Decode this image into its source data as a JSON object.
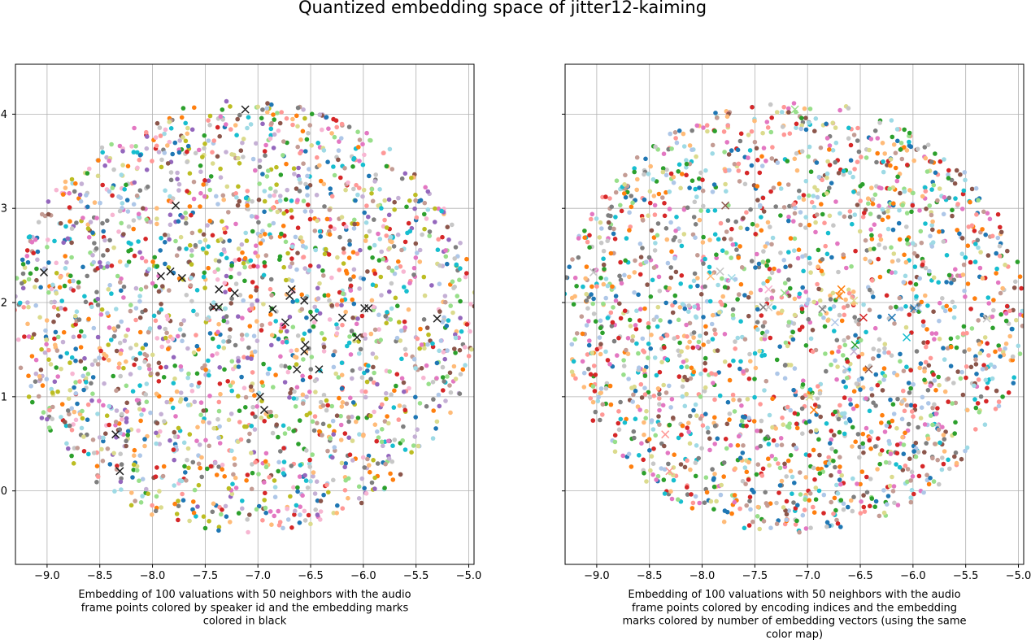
{
  "title": "Quantized embedding space of jitter12-kaiming",
  "chart_data": [
    {
      "type": "scatter",
      "caption_lines": [
        "Embedding of 100 valuations with 50 neighbors with the audio",
        "frame points colored by speaker id and the embedding marks",
        "colored in black"
      ],
      "xlim": [
        -9.3,
        -4.95
      ],
      "ylim": [
        -0.78,
        4.53
      ],
      "xticks": [
        -9.0,
        -8.5,
        -8.0,
        -7.5,
        -7.0,
        -6.5,
        -6.0,
        -5.5,
        -5.0
      ],
      "xtick_labels": [
        "−9.0",
        "−8.5",
        "−8.0",
        "−7.5",
        "−7.0",
        "−6.5",
        "−6.0",
        "−5.5",
        "−5.0"
      ],
      "yticks": [
        0,
        1,
        2,
        3,
        4
      ],
      "ytick_labels": [
        "0",
        "1",
        "2",
        "3",
        "4"
      ],
      "grid": true,
      "point_series": {
        "name": "audio frame points (colored by speaker id)",
        "count": 2200,
        "distribution": "roughly uniform disc",
        "center": [
          -7.13,
          1.85
        ],
        "radius_x": 2.2,
        "radius_y": 2.3,
        "palette": [
          "#1f77b4",
          "#2ca02c",
          "#d62728",
          "#9467bd",
          "#8c564b",
          "#e377c2",
          "#bcbd22",
          "#17becf",
          "#aec7e8",
          "#ffbb78",
          "#98df8a",
          "#ff9896",
          "#c5b0d5",
          "#c49c94",
          "#f7b6d2",
          "#c7c7c7",
          "#dbdb8d",
          "#9edae5",
          "#ff7f0e",
          "#7f7f7f"
        ]
      },
      "marks": {
        "name": "embedding marks",
        "color": "#222222",
        "points": [
          [
            -7.12,
            4.05
          ],
          [
            -7.78,
            3.03
          ],
          [
            -9.03,
            2.32
          ],
          [
            -7.92,
            2.28
          ],
          [
            -7.83,
            2.33
          ],
          [
            -7.72,
            2.26
          ],
          [
            -7.37,
            2.14
          ],
          [
            -7.22,
            2.1
          ],
          [
            -7.42,
            1.95
          ],
          [
            -7.37,
            1.95
          ],
          [
            -6.68,
            2.14
          ],
          [
            -6.7,
            2.07
          ],
          [
            -6.56,
            2.02
          ],
          [
            -6.86,
            1.93
          ],
          [
            -6.74,
            1.79
          ],
          [
            -6.47,
            1.84
          ],
          [
            -6.2,
            1.84
          ],
          [
            -5.99,
            1.94
          ],
          [
            -5.95,
            1.94
          ],
          [
            -6.06,
            1.63
          ],
          [
            -6.55,
            1.55
          ],
          [
            -6.56,
            1.48
          ],
          [
            -6.42,
            1.29
          ],
          [
            -6.63,
            1.29
          ],
          [
            -6.98,
            1.0
          ],
          [
            -6.94,
            0.86
          ],
          [
            -8.35,
            0.6
          ],
          [
            -8.31,
            0.21
          ],
          [
            -5.3,
            1.83
          ]
        ]
      }
    },
    {
      "type": "scatter",
      "caption_lines": [
        "Embedding of 100 valuations with 50 neighbors with the audio",
        "frame points colored by encoding indices and the embedding",
        "marks colored by number of embedding vectors (using the same",
        "color map)"
      ],
      "xlim": [
        -9.3,
        -4.95
      ],
      "ylim": [
        -0.78,
        4.53
      ],
      "xticks": [
        -9.0,
        -8.5,
        -8.0,
        -7.5,
        -7.0,
        -6.5,
        -6.0,
        -5.5,
        -5.0
      ],
      "xtick_labels": [
        "−9.0",
        "−8.5",
        "−8.0",
        "−7.5",
        "−7.0",
        "−6.5",
        "−6.0",
        "−5.5",
        "−5.0"
      ],
      "yticks": [
        0,
        1,
        2,
        3,
        4
      ],
      "grid": true,
      "point_series": {
        "name": "audio frame points (colored by encoding indices)",
        "count": 2200,
        "distribution": "roughly uniform disc",
        "center": [
          -7.13,
          1.85
        ],
        "radius_x": 2.2,
        "radius_y": 2.3,
        "palette": [
          "#c7c7c7",
          "#ff9896",
          "#ff7f0e",
          "#1f77b4",
          "#2ca02c",
          "#d62728",
          "#9edae5",
          "#17becf",
          "#ffbb78",
          "#98df8a",
          "#aec7e8",
          "#8c564b",
          "#dbdb8d",
          "#e377c2",
          "#c49c94",
          "#7f7f7f"
        ]
      },
      "marks": {
        "name": "embedding marks (colored by number of embedding vectors)",
        "points": [
          [
            -7.12,
            4.05,
            "#98df8a"
          ],
          [
            -7.78,
            3.03,
            "#8c564b"
          ],
          [
            -9.03,
            2.32,
            "#c7c7c7"
          ],
          [
            -7.92,
            2.28,
            "#ffbb78"
          ],
          [
            -7.83,
            2.33,
            "#c7c7c7"
          ],
          [
            -7.72,
            2.26,
            "#9edae5"
          ],
          [
            -7.37,
            2.14,
            "#f7b6d2"
          ],
          [
            -7.22,
            2.1,
            "#98df8a"
          ],
          [
            -7.42,
            1.95,
            "#7f7f7f"
          ],
          [
            -7.37,
            1.95,
            "#c7c7c7"
          ],
          [
            -6.68,
            2.14,
            "#ff7f0e"
          ],
          [
            -6.7,
            2.07,
            "#ff7f0e"
          ],
          [
            -6.56,
            2.02,
            "#dbdb8d"
          ],
          [
            -6.86,
            1.93,
            "#7f7f7f"
          ],
          [
            -6.74,
            1.79,
            "#aec7e8"
          ],
          [
            -6.47,
            1.84,
            "#d62728"
          ],
          [
            -6.2,
            1.84,
            "#1f77b4"
          ],
          [
            -5.99,
            1.94,
            "#1f77b4"
          ],
          [
            -5.95,
            1.94,
            "#aec7e8"
          ],
          [
            -6.06,
            1.63,
            "#17becf"
          ],
          [
            -6.55,
            1.55,
            "#2ca02c"
          ],
          [
            -6.56,
            1.48,
            "#c5b0d5"
          ],
          [
            -6.42,
            1.29,
            "#8c564b"
          ],
          [
            -6.63,
            1.29,
            "#aec7e8"
          ],
          [
            -6.98,
            1.0,
            "#dbdb8d"
          ],
          [
            -6.94,
            0.86,
            "#ff7f0e"
          ],
          [
            -8.35,
            0.6,
            "#ff9896"
          ],
          [
            -8.31,
            0.21,
            "#ff9896"
          ],
          [
            -5.3,
            1.83,
            "#c7c7c7"
          ]
        ]
      }
    }
  ]
}
